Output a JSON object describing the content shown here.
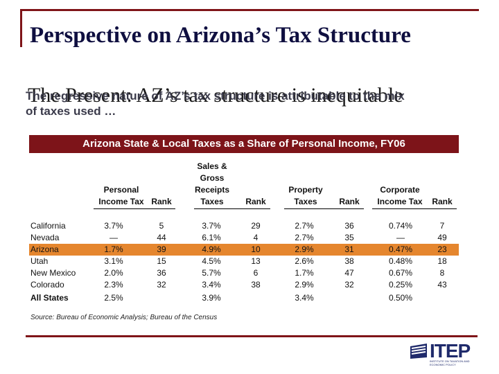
{
  "slide": {
    "title": "Perspective on Arizona’s Tax Structure",
    "subtitle_serif": "The regressive nature of AZ’s tax structure is attributable to the mix",
    "subtitle_overlay": "The Present: AZ’s tax structure is inequitable",
    "subtitle_sans_1": "The regressive nature of AZ’s tax structure is attributable to the mix",
    "subtitle_sans_2": "of taxes used …"
  },
  "table": {
    "title": "Arizona State & Local Taxes as a Share of Personal Income, FY06",
    "headers": {
      "personal": "Personal",
      "income_tax": "Income Tax",
      "rank1": "Rank",
      "sales1": "Sales &",
      "sales2": "Gross",
      "sales3": "Receipts",
      "sales4": "Taxes",
      "rank2": "Rank",
      "property1": "Property",
      "property2": "Taxes",
      "rank3": "Rank",
      "corp1": "Corporate",
      "corp2": "Income Tax",
      "rank4": "Rank"
    },
    "rows": [
      {
        "state": "California",
        "pit": "3.7%",
        "pit_rank": "5",
        "sales": "3.7%",
        "sales_rank": "29",
        "prop": "2.7%",
        "prop_rank": "36",
        "corp": "0.74%",
        "corp_rank": "7"
      },
      {
        "state": "Nevada",
        "pit": "—",
        "pit_rank": "44",
        "sales": "6.1%",
        "sales_rank": "4",
        "prop": "2.7%",
        "prop_rank": "35",
        "corp": "—",
        "corp_rank": "49"
      },
      {
        "state": "Arizona",
        "pit": "1.7%",
        "pit_rank": "39",
        "sales": "4.9%",
        "sales_rank": "10",
        "prop": "2.9%",
        "prop_rank": "31",
        "corp": "0.47%",
        "corp_rank": "23"
      },
      {
        "state": "Utah",
        "pit": "3.1%",
        "pit_rank": "15",
        "sales": "4.5%",
        "sales_rank": "13",
        "prop": "2.6%",
        "prop_rank": "38",
        "corp": "0.48%",
        "corp_rank": "18"
      },
      {
        "state": "New Mexico",
        "pit": "2.0%",
        "pit_rank": "36",
        "sales": "5.7%",
        "sales_rank": "6",
        "prop": "1.7%",
        "prop_rank": "47",
        "corp": "0.67%",
        "corp_rank": "8"
      },
      {
        "state": "Colorado",
        "pit": "2.3%",
        "pit_rank": "32",
        "sales": "3.4%",
        "sales_rank": "38",
        "prop": "2.9%",
        "prop_rank": "32",
        "corp": "0.25%",
        "corp_rank": "43"
      },
      {
        "state": "All States",
        "pit": "2.5%",
        "pit_rank": "",
        "sales": "3.9%",
        "sales_rank": "",
        "prop": "3.4%",
        "prop_rank": "",
        "corp": "0.50%",
        "corp_rank": ""
      }
    ],
    "source": "Source: Bureau of Economic Analysis; Bureau of the Census"
  },
  "logo": {
    "text": "ITEP",
    "tagline": "INSTITUTE ON TAXATION AND ECONOMIC POLICY"
  },
  "colors": {
    "accent": "#7d1419",
    "highlight": "#e5862e",
    "title": "#0f0f40"
  }
}
